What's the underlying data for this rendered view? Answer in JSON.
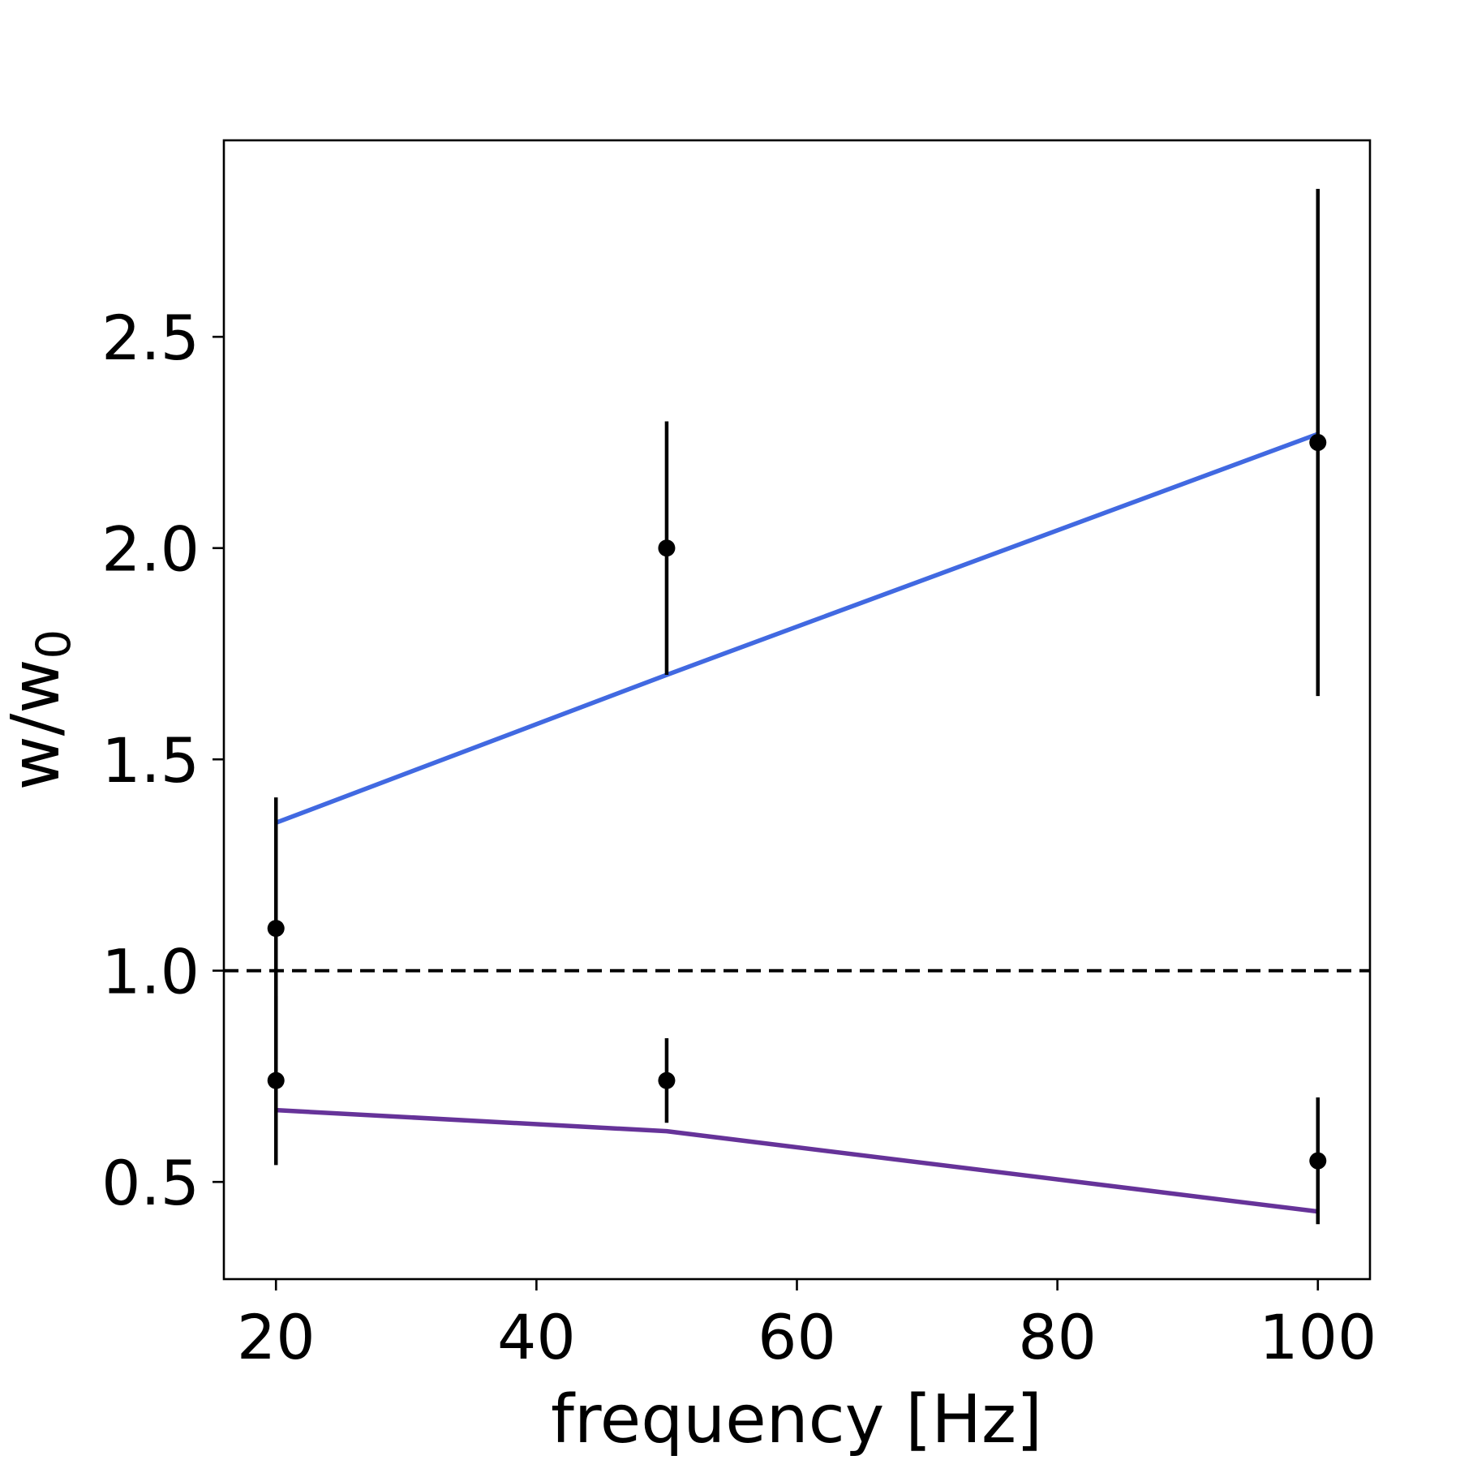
{
  "chart_data": {
    "type": "line",
    "xlabel": "frequency [Hz]",
    "ylabel": {
      "base": "w/w",
      "subscript": "0"
    },
    "xlim": [
      16,
      104
    ],
    "ylim": [
      0.27,
      2.965
    ],
    "xticks": [
      20,
      40,
      60,
      80,
      100
    ],
    "xtick_labels": [
      "20",
      "40",
      "60",
      "80",
      "100"
    ],
    "yticks": [
      0.5,
      1.0,
      1.5,
      2.0,
      2.5
    ],
    "ytick_labels": [
      "0.5",
      "1.0",
      "1.5",
      "2.0",
      "2.5"
    ],
    "grid": false,
    "reference_line": {
      "y": 1.0,
      "style": "dashed",
      "color": "#000000"
    },
    "series": [
      {
        "kind": "line",
        "color": "#4169e1",
        "x": [
          20,
          50,
          100
        ],
        "y": [
          1.35,
          1.7,
          2.27
        ]
      },
      {
        "kind": "line",
        "color": "#663399",
        "x": [
          20,
          50,
          100
        ],
        "y": [
          0.67,
          0.62,
          0.43
        ]
      },
      {
        "kind": "errorbar",
        "color": "#000000",
        "points": [
          {
            "x": 20,
            "y": 1.1,
            "ylow": 0.79,
            "yhigh": 1.41
          },
          {
            "x": 50,
            "y": 2.0,
            "ylow": 1.7,
            "yhigh": 2.3
          },
          {
            "x": 100,
            "y": 2.25,
            "ylow": 1.65,
            "yhigh": 2.85
          },
          {
            "x": 20,
            "y": 0.74,
            "ylow": 0.54,
            "yhigh": 0.94
          },
          {
            "x": 50,
            "y": 0.74,
            "ylow": 0.64,
            "yhigh": 0.84
          },
          {
            "x": 100,
            "y": 0.55,
            "ylow": 0.4,
            "yhigh": 0.7
          }
        ]
      }
    ]
  }
}
